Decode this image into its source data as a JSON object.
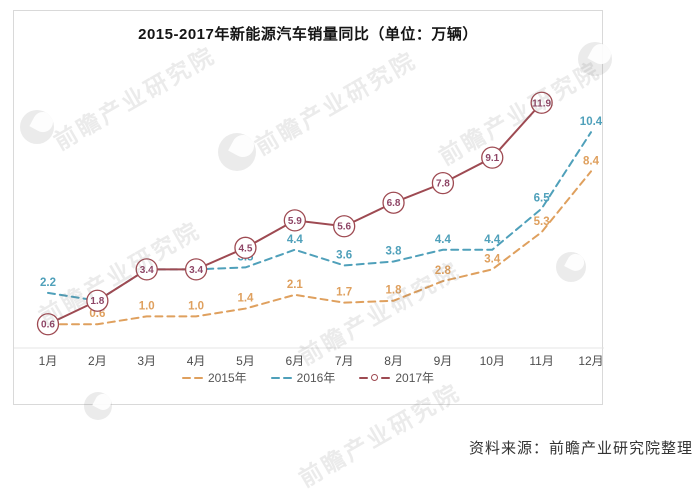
{
  "page": {
    "background": "#ffffff",
    "source_note": "资料来源：前瞻产业研究院整理",
    "watermark_text": "前瞻产业研究院"
  },
  "chart_data": {
    "type": "line",
    "title": "2015-2017年新能源汽车销量同比（单位：万辆）",
    "unit_label": "万辆",
    "categories": [
      "1月",
      "2月",
      "3月",
      "4月",
      "5月",
      "6月",
      "7月",
      "8月",
      "9月",
      "10月",
      "11月",
      "12月"
    ],
    "series": [
      {
        "name": "2015年",
        "color": "#DFA05E",
        "line_style": "dashed",
        "marker": "none",
        "values": [
          0.6,
          0.6,
          1.0,
          1.0,
          1.4,
          2.1,
          1.7,
          1.8,
          2.8,
          3.4,
          5.3,
          8.4
        ],
        "hidden_label_indices": [
          0
        ]
      },
      {
        "name": "2016年",
        "color": "#4FA0BA",
        "line_style": "dashed",
        "marker": "none",
        "values": [
          2.2,
          1.8,
          3.4,
          3.4,
          3.5,
          4.4,
          3.6,
          3.8,
          4.4,
          4.4,
          6.5,
          10.4
        ],
        "hidden_label_indices": [
          1,
          2,
          3
        ]
      },
      {
        "name": "2017年",
        "color": "#9E4A52",
        "label_color": "#8E4566",
        "line_style": "solid",
        "marker": "circled-value",
        "values": [
          0.6,
          1.8,
          3.4,
          3.4,
          4.5,
          5.9,
          5.6,
          6.8,
          7.8,
          9.1,
          11.9
        ],
        "hidden_label_indices": []
      }
    ],
    "ylim": [
      0,
      13
    ],
    "grid": false,
    "legend_position": "bottom",
    "axis_line_color": "#e4e4e4",
    "tick_label_color": "#4d4d4d",
    "legend_text_color": "#555555"
  }
}
